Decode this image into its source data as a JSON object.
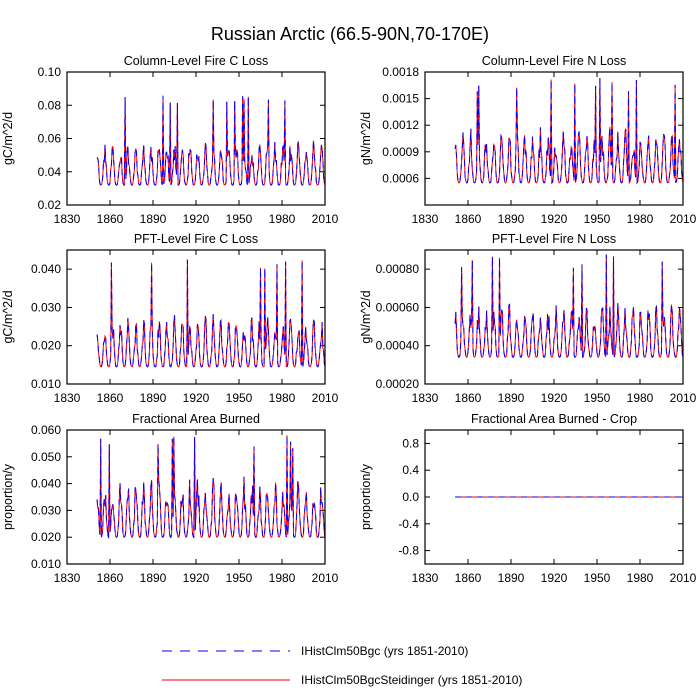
{
  "figure": {
    "title": "Russian Arctic (66.5-90N,70-170E)"
  },
  "legend": {
    "placement": "bottom-center",
    "entries": [
      {
        "label": "IHistClm50Bgc (yrs 1851-2010)",
        "color": "#0000ff",
        "style": "dashed"
      },
      {
        "label": "IHistClm50BgcSteidinger (yrs 1851-2010)",
        "color": "#ff0000",
        "style": "solid"
      }
    ]
  },
  "chart_data": [
    {
      "type": "line",
      "title": "Column-Level Fire C Loss",
      "ylabel": "gC/m^2/d",
      "xlim": [
        1830,
        2010
      ],
      "xticks": [
        1830,
        1860,
        1890,
        1920,
        1950,
        1980,
        2010
      ],
      "ylim": [
        0.02,
        0.1
      ],
      "yticks": [
        "0.02",
        "0.04",
        "0.06",
        "0.08",
        "0.10"
      ],
      "x_start": 1851,
      "x_end": 2010,
      "baseline": 0.032,
      "amp": 0.024,
      "peak": 0.087,
      "seed": 11
    },
    {
      "type": "line",
      "title": "Column-Level Fire N Loss",
      "ylabel": "gN/m^2/d",
      "xlim": [
        1830,
        2010
      ],
      "xticks": [
        1830,
        1860,
        1890,
        1920,
        1950,
        1980,
        2010
      ],
      "ylim": [
        0.0003,
        0.0018
      ],
      "yticks": [
        "0.0006",
        "0.0009",
        "0.0012",
        "0.0015",
        "0.0018"
      ],
      "x_start": 1851,
      "x_end": 2010,
      "baseline": 0.00055,
      "amp": 0.00055,
      "peak": 0.00175,
      "seed": 23
    },
    {
      "type": "line",
      "title": "PFT-Level Fire C Loss",
      "ylabel": "gC/m^2/d",
      "xlim": [
        1830,
        2010
      ],
      "xticks": [
        1830,
        1860,
        1890,
        1920,
        1950,
        1980,
        2010
      ],
      "ylim": [
        0.01,
        0.045
      ],
      "yticks": [
        "0.010",
        "0.020",
        "0.030",
        "0.040"
      ],
      "x_start": 1851,
      "x_end": 2010,
      "baseline": 0.0145,
      "amp": 0.012,
      "peak": 0.043,
      "seed": 37
    },
    {
      "type": "line",
      "title": "PFT-Level Fire N Loss",
      "ylabel": "gN/m^2/d",
      "xlim": [
        1830,
        2010
      ],
      "xticks": [
        1830,
        1860,
        1890,
        1920,
        1950,
        1980,
        2010
      ],
      "ylim": [
        0.0002,
        0.0009
      ],
      "yticks": [
        "0.00020",
        "0.00040",
        "0.00060",
        "0.00080"
      ],
      "x_start": 1851,
      "x_end": 2010,
      "baseline": 0.00034,
      "amp": 0.00025,
      "peak": 0.00088,
      "seed": 41
    },
    {
      "type": "line",
      "title": "Fractional Area Burned",
      "ylabel": "proportion/y",
      "xlim": [
        1830,
        2010
      ],
      "xticks": [
        1830,
        1860,
        1890,
        1920,
        1950,
        1980,
        2010
      ],
      "ylim": [
        0.01,
        0.06
      ],
      "yticks": [
        "0.010",
        "0.020",
        "0.030",
        "0.040",
        "0.050",
        "0.060"
      ],
      "x_start": 1851,
      "x_end": 2010,
      "baseline": 0.02,
      "amp": 0.02,
      "peak": 0.059,
      "seed": 53
    },
    {
      "type": "line",
      "title": "Fractional Area Burned - Crop",
      "ylabel": "proportion/y",
      "xlim": [
        1830,
        2010
      ],
      "xticks": [
        1830,
        1860,
        1890,
        1920,
        1950,
        1980,
        2010
      ],
      "ylim": [
        -1.0,
        1.0
      ],
      "yticks": [
        "-0.8",
        "-0.4",
        "0.0",
        "0.4",
        "0.8"
      ],
      "x_start": 1851,
      "x_end": 2010,
      "constant": 0.0
    }
  ]
}
